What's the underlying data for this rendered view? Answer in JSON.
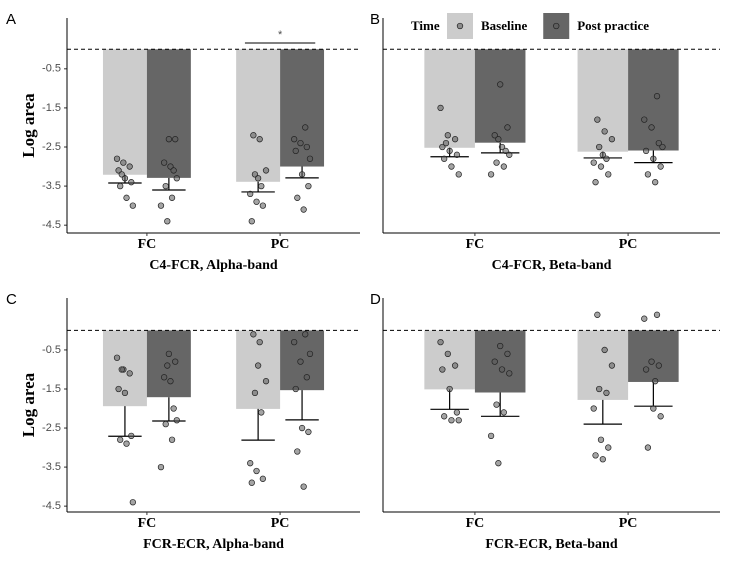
{
  "legend": {
    "title": "Time",
    "series": [
      {
        "name": "Baseline",
        "color": "#cccccc"
      },
      {
        "name": "Post practice",
        "color": "#666666"
      }
    ]
  },
  "chart_data": [
    {
      "type": "bar",
      "panel_label": "A",
      "y_label": "Log area",
      "x_label": "C4-FCR, Alpha-band",
      "categories": [
        "FC",
        "PC"
      ],
      "ylim": [
        -4.7,
        0.8
      ],
      "yticks": [
        -0.5,
        -1.5,
        -2.5,
        -3.5,
        -4.5
      ],
      "reference_line": 0,
      "annotation": "*",
      "series": [
        {
          "values": [
            -3.21,
            -3.39
          ],
          "errors": [
            0.21,
            0.26
          ],
          "points": [
            [
              -2.8,
              -2.9,
              -3.0,
              -3.1,
              -3.3,
              -3.4,
              -3.5,
              -3.8,
              -4.0,
              -3.2
            ],
            [
              -2.2,
              -2.3,
              -3.1,
              -3.2,
              -3.5,
              -3.7,
              -3.9,
              -4.0,
              -4.4,
              -3.3
            ]
          ]
        },
        {
          "values": [
            -3.29,
            -3.0
          ],
          "errors": [
            0.31,
            0.29
          ],
          "points": [
            [
              -2.3,
              -2.3,
              -2.9,
              -3.0,
              -3.3,
              -3.5,
              -3.8,
              -4.0,
              -4.4,
              -3.1
            ],
            [
              -2.0,
              -2.3,
              -2.4,
              -2.5,
              -2.6,
              -3.2,
              -3.5,
              -3.8,
              -4.1,
              -2.8
            ]
          ]
        }
      ]
    },
    {
      "type": "bar",
      "panel_label": "B",
      "x_label": "C4-FCR, Beta-band",
      "categories": [
        "FC",
        "PC"
      ],
      "ylim": [
        -4.7,
        0.8
      ],
      "reference_line": 0,
      "legend": "top",
      "series": [
        {
          "values": [
            -2.52,
            -2.62
          ],
          "errors": [
            0.23,
            0.16
          ],
          "points": [
            [
              -1.5,
              -2.2,
              -2.3,
              -2.5,
              -2.6,
              -2.7,
              -2.8,
              -3.0,
              -3.2,
              -2.4
            ],
            [
              -1.8,
              -2.1,
              -2.3,
              -2.5,
              -2.8,
              -2.9,
              -3.0,
              -3.2,
              -3.4,
              -2.7
            ]
          ]
        },
        {
          "values": [
            -2.39,
            -2.59
          ],
          "errors": [
            0.26,
            0.31
          ],
          "points": [
            [
              -0.9,
              -2.0,
              -2.2,
              -2.5,
              -2.7,
              -2.9,
              -3.0,
              -3.2,
              -2.3,
              -2.6
            ],
            [
              -1.2,
              -1.8,
              -2.0,
              -2.4,
              -2.6,
              -2.8,
              -3.0,
              -3.2,
              -3.4,
              -2.5
            ]
          ]
        }
      ]
    },
    {
      "type": "bar",
      "panel_label": "C",
      "y_label": "Log area",
      "x_label": "FCR-ECR, Alpha-band",
      "categories": [
        "FC",
        "PC"
      ],
      "ylim": [
        -4.65,
        0.83
      ],
      "yticks": [
        -0.5,
        -1.5,
        -2.5,
        -3.5,
        -4.5
      ],
      "reference_line": 0,
      "series": [
        {
          "values": [
            -1.94,
            -2.01
          ],
          "errors": [
            0.77,
            0.8
          ],
          "points": [
            [
              -0.7,
              -1.0,
              -1.1,
              -1.5,
              -1.6,
              -2.7,
              -2.8,
              -2.9,
              -4.4,
              -1.0
            ],
            [
              -0.1,
              -0.3,
              -1.3,
              -1.6,
              -2.1,
              -3.4,
              -3.6,
              -3.8,
              -3.9,
              -0.9
            ]
          ]
        },
        {
          "values": [
            -1.71,
            -1.53
          ],
          "errors": [
            0.61,
            0.76
          ],
          "points": [
            [
              -0.6,
              -0.8,
              -1.2,
              -1.3,
              -2.3,
              -2.4,
              -2.8,
              -3.5,
              -0.9,
              -2.0
            ],
            [
              -0.1,
              -0.3,
              -0.8,
              -1.2,
              -1.5,
              -2.5,
              -2.6,
              -3.1,
              -4.0,
              -0.6
            ]
          ]
        }
      ]
    },
    {
      "type": "bar",
      "panel_label": "D",
      "x_label": "FCR-ECR, Beta-band",
      "categories": [
        "FC",
        "PC"
      ],
      "ylim": [
        -4.65,
        0.83
      ],
      "reference_line": 0,
      "series": [
        {
          "values": [
            -1.51,
            -1.78
          ],
          "errors": [
            0.51,
            0.62
          ],
          "points": [
            [
              -0.3,
              -0.6,
              -0.9,
              -1.0,
              -1.5,
              -2.1,
              -2.2,
              -2.3,
              -2.3
            ],
            [
              0.4,
              -0.5,
              -0.9,
              -1.5,
              -1.6,
              -2.0,
              -2.8,
              -3.0,
              -3.2,
              -3.3
            ]
          ]
        },
        {
          "values": [
            -1.59,
            -1.32
          ],
          "errors": [
            0.61,
            0.62
          ],
          "points": [
            [
              -0.4,
              -0.6,
              -0.8,
              -1.0,
              -1.1,
              -1.9,
              -2.1,
              -2.7,
              -3.4
            ],
            [
              0.4,
              0.3,
              -0.8,
              -0.9,
              -1.0,
              -2.0,
              -2.2,
              -3.0,
              -1.3
            ]
          ]
        }
      ]
    }
  ]
}
